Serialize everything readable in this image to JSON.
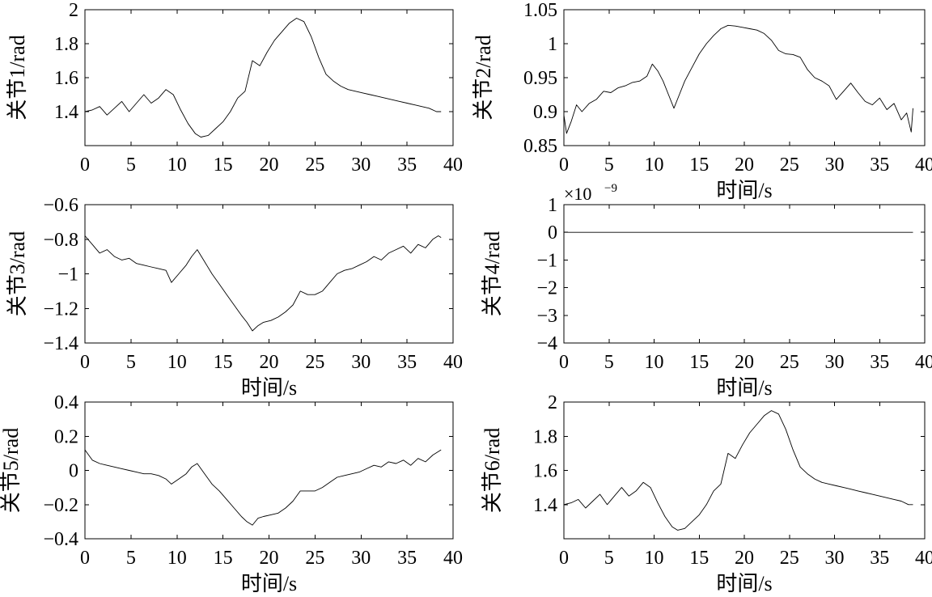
{
  "chart_data": [
    {
      "type": "line",
      "ylabel": "关节1/rad",
      "xlabel": "",
      "xlim": [
        0,
        40
      ],
      "ylim": [
        1.2,
        2
      ],
      "xticks": [
        "0",
        "5",
        "10",
        "15",
        "20",
        "25",
        "30",
        "35",
        "40"
      ],
      "yticks": [
        "1.4",
        "1.6",
        "1.8",
        "2"
      ],
      "ytick_values": [
        1.4,
        1.6,
        1.8,
        2.0
      ],
      "series": [
        {
          "x": [
            0,
            0.8,
            1.6,
            2.4,
            3.2,
            4.0,
            4.8,
            5.6,
            6.4,
            7.2,
            8.0,
            8.8,
            9.6,
            10.4,
            11.2,
            12.0,
            12.6,
            13.4,
            14.2,
            15.0,
            15.8,
            16.6,
            17.4,
            18.2,
            19.0,
            19.8,
            20.6,
            21.4,
            22.2,
            23.0,
            23.8,
            24.6,
            25.4,
            26.2,
            27.0,
            27.8,
            28.6,
            29.4,
            30.2,
            31.0,
            31.8,
            32.6,
            33.4,
            34.2,
            35.0,
            35.8,
            36.6,
            37.4,
            38.2,
            38.7
          ],
          "y": [
            1.4,
            1.41,
            1.43,
            1.38,
            1.42,
            1.46,
            1.4,
            1.45,
            1.5,
            1.45,
            1.48,
            1.53,
            1.5,
            1.41,
            1.33,
            1.27,
            1.25,
            1.26,
            1.3,
            1.34,
            1.4,
            1.48,
            1.52,
            1.7,
            1.67,
            1.75,
            1.82,
            1.87,
            1.92,
            1.95,
            1.93,
            1.84,
            1.72,
            1.62,
            1.58,
            1.55,
            1.53,
            1.52,
            1.51,
            1.5,
            1.49,
            1.48,
            1.47,
            1.46,
            1.45,
            1.44,
            1.43,
            1.42,
            1.4,
            1.4
          ]
        }
      ]
    },
    {
      "type": "line",
      "ylabel": "关节2/rad",
      "xlabel": "时间/s",
      "xlim": [
        0,
        40
      ],
      "ylim": [
        0.85,
        1.05
      ],
      "xticks": [
        "0",
        "5",
        "10",
        "15",
        "20",
        "25",
        "30",
        "35",
        "40"
      ],
      "yticks": [
        "0.85",
        "0.9",
        "0.95",
        "1",
        "1.05"
      ],
      "ytick_values": [
        0.85,
        0.9,
        0.95,
        1.0,
        1.05
      ],
      "series": [
        {
          "x": [
            0,
            0.3,
            0.8,
            1.4,
            2.0,
            2.8,
            3.6,
            4.4,
            5.2,
            6.0,
            6.8,
            7.6,
            8.4,
            9.2,
            9.8,
            10.4,
            11.0,
            11.6,
            12.2,
            12.8,
            13.4,
            14.2,
            15.0,
            15.8,
            16.6,
            17.4,
            18.2,
            19.0,
            19.8,
            20.6,
            21.4,
            22.2,
            23.0,
            23.8,
            24.6,
            25.4,
            26.2,
            27.0,
            27.8,
            28.6,
            29.4,
            30.2,
            31.0,
            31.8,
            32.6,
            33.4,
            34.2,
            35.0,
            35.8,
            36.6,
            37.4,
            38.0,
            38.5,
            38.7
          ],
          "y": [
            0.895,
            0.868,
            0.885,
            0.91,
            0.9,
            0.912,
            0.918,
            0.93,
            0.928,
            0.935,
            0.938,
            0.943,
            0.945,
            0.952,
            0.97,
            0.96,
            0.945,
            0.925,
            0.905,
            0.925,
            0.945,
            0.965,
            0.985,
            1.0,
            1.012,
            1.022,
            1.027,
            1.026,
            1.024,
            1.022,
            1.02,
            1.015,
            1.005,
            0.99,
            0.985,
            0.984,
            0.98,
            0.962,
            0.95,
            0.945,
            0.938,
            0.918,
            0.93,
            0.942,
            0.928,
            0.915,
            0.91,
            0.92,
            0.903,
            0.912,
            0.888,
            0.898,
            0.87,
            0.905
          ]
        }
      ]
    },
    {
      "type": "line",
      "ylabel": "关节3/rad",
      "xlabel": "时间/s",
      "xlim": [
        0,
        40
      ],
      "ylim": [
        -1.4,
        -0.6
      ],
      "xticks": [
        "0",
        "5",
        "10",
        "15",
        "20",
        "25",
        "30",
        "35",
        "40"
      ],
      "yticks": [
        "−0.6",
        "−0.8",
        "−1",
        "−1.2",
        "−1.4"
      ],
      "ytick_values": [
        -0.6,
        -0.8,
        -1.0,
        -1.2,
        -1.4
      ],
      "series": [
        {
          "x": [
            0,
            0.8,
            1.6,
            2.4,
            3.2,
            4.0,
            4.8,
            5.6,
            6.4,
            7.2,
            8.0,
            8.8,
            9.4,
            10.2,
            11.0,
            11.6,
            12.2,
            13.0,
            13.8,
            14.6,
            15.4,
            16.2,
            17.0,
            17.6,
            18.2,
            18.8,
            19.4,
            20.2,
            21.0,
            21.8,
            22.6,
            23.4,
            24.2,
            25.0,
            25.8,
            26.6,
            27.4,
            28.2,
            29.0,
            29.8,
            30.6,
            31.4,
            32.2,
            33.0,
            33.8,
            34.6,
            35.4,
            36.2,
            37.0,
            37.8,
            38.4,
            38.7
          ],
          "y": [
            -0.78,
            -0.83,
            -0.88,
            -0.86,
            -0.9,
            -0.92,
            -0.91,
            -0.94,
            -0.95,
            -0.96,
            -0.97,
            -0.98,
            -1.05,
            -1.0,
            -0.95,
            -0.9,
            -0.86,
            -0.93,
            -1.0,
            -1.06,
            -1.12,
            -1.18,
            -1.24,
            -1.28,
            -1.33,
            -1.3,
            -1.28,
            -1.27,
            -1.25,
            -1.22,
            -1.18,
            -1.1,
            -1.12,
            -1.12,
            -1.1,
            -1.05,
            -1.0,
            -0.98,
            -0.97,
            -0.95,
            -0.93,
            -0.9,
            -0.92,
            -0.88,
            -0.86,
            -0.84,
            -0.88,
            -0.83,
            -0.85,
            -0.8,
            -0.78,
            -0.79
          ]
        }
      ]
    },
    {
      "type": "line",
      "ylabel": "关节4/rad",
      "xlabel": "时间/s",
      "exponent_label": "×10",
      "exponent_power": "−9",
      "xlim": [
        0,
        40
      ],
      "ylim": [
        -4,
        1
      ],
      "xticks": [
        "0",
        "5",
        "10",
        "15",
        "20",
        "25",
        "30",
        "35",
        "40"
      ],
      "yticks": [
        "1",
        "0",
        "−1",
        "−2",
        "−3",
        "−4"
      ],
      "ytick_values": [
        1,
        0,
        -1,
        -2,
        -3,
        -4
      ],
      "series": [
        {
          "x": [
            0,
            38.7
          ],
          "y": [
            0,
            0
          ]
        }
      ]
    },
    {
      "type": "line",
      "ylabel": "关节5/rad",
      "xlabel": "时间/s",
      "xlim": [
        0,
        40
      ],
      "ylim": [
        -0.4,
        0.4
      ],
      "xticks": [
        "0",
        "5",
        "10",
        "15",
        "20",
        "25",
        "30",
        "35",
        "40"
      ],
      "yticks": [
        "0.4",
        "0.2",
        "0",
        "−0.2",
        "−0.4"
      ],
      "ytick_values": [
        0.4,
        0.2,
        0,
        -0.2,
        -0.4
      ],
      "series": [
        {
          "x": [
            0,
            0.8,
            1.6,
            2.4,
            3.2,
            4.0,
            4.8,
            5.6,
            6.4,
            7.2,
            8.0,
            8.8,
            9.4,
            10.2,
            11.0,
            11.6,
            12.2,
            13.0,
            13.8,
            14.6,
            15.4,
            16.2,
            17.0,
            17.6,
            18.2,
            18.8,
            19.4,
            20.2,
            21.0,
            21.8,
            22.6,
            23.4,
            24.2,
            25.0,
            25.8,
            26.6,
            27.4,
            28.2,
            29.0,
            29.8,
            30.6,
            31.4,
            32.2,
            33.0,
            33.8,
            34.6,
            35.4,
            36.2,
            37.0,
            37.8,
            38.4,
            38.7
          ],
          "y": [
            0.12,
            0.06,
            0.04,
            0.03,
            0.02,
            0.01,
            0.0,
            -0.01,
            -0.02,
            -0.02,
            -0.03,
            -0.05,
            -0.08,
            -0.05,
            -0.02,
            0.02,
            0.04,
            -0.02,
            -0.08,
            -0.12,
            -0.17,
            -0.22,
            -0.27,
            -0.3,
            -0.32,
            -0.28,
            -0.27,
            -0.26,
            -0.25,
            -0.22,
            -0.18,
            -0.12,
            -0.12,
            -0.12,
            -0.1,
            -0.07,
            -0.04,
            -0.03,
            -0.02,
            -0.01,
            0.01,
            0.03,
            0.02,
            0.05,
            0.04,
            0.06,
            0.03,
            0.07,
            0.05,
            0.09,
            0.11,
            0.12
          ]
        }
      ]
    },
    {
      "type": "line",
      "ylabel": "关节6/rad",
      "xlabel": "时间/s",
      "xlim": [
        0,
        40
      ],
      "ylim": [
        1.2,
        2
      ],
      "xticks": [
        "0",
        "5",
        "10",
        "15",
        "20",
        "25",
        "30",
        "35",
        "40"
      ],
      "yticks": [
        "1.4",
        "1.6",
        "1.8",
        "2"
      ],
      "ytick_values": [
        1.4,
        1.6,
        1.8,
        2.0
      ],
      "series": [
        {
          "x": [
            0,
            0.8,
            1.6,
            2.4,
            3.2,
            4.0,
            4.8,
            5.6,
            6.4,
            7.2,
            8.0,
            8.8,
            9.6,
            10.4,
            11.2,
            12.0,
            12.6,
            13.4,
            14.2,
            15.0,
            15.8,
            16.6,
            17.4,
            18.2,
            19.0,
            19.8,
            20.6,
            21.4,
            22.2,
            23.0,
            23.8,
            24.6,
            25.4,
            26.2,
            27.0,
            27.8,
            28.6,
            29.4,
            30.2,
            31.0,
            31.8,
            32.6,
            33.4,
            34.2,
            35.0,
            35.8,
            36.6,
            37.4,
            38.2,
            38.7
          ],
          "y": [
            1.4,
            1.41,
            1.43,
            1.38,
            1.42,
            1.46,
            1.4,
            1.45,
            1.5,
            1.45,
            1.48,
            1.53,
            1.5,
            1.41,
            1.33,
            1.27,
            1.25,
            1.26,
            1.3,
            1.34,
            1.4,
            1.48,
            1.52,
            1.7,
            1.67,
            1.75,
            1.82,
            1.87,
            1.92,
            1.95,
            1.93,
            1.84,
            1.72,
            1.62,
            1.58,
            1.55,
            1.53,
            1.52,
            1.51,
            1.5,
            1.49,
            1.48,
            1.47,
            1.46,
            1.45,
            1.44,
            1.43,
            1.42,
            1.4,
            1.4
          ]
        }
      ]
    }
  ]
}
